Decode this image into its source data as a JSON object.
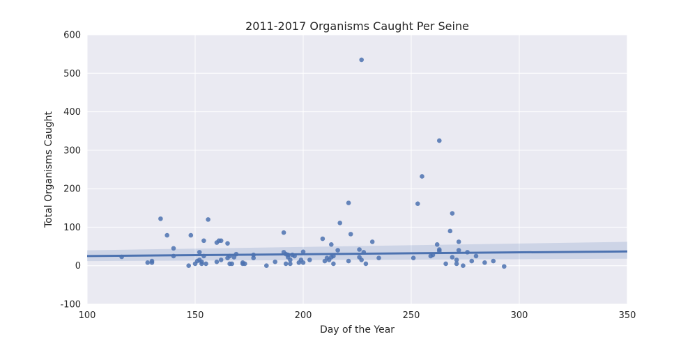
{
  "chart_data": {
    "type": "scatter",
    "title": "2011-2017 Organisms Caught Per Seine",
    "xlabel": "Day of the Year",
    "ylabel": "Total Organisms Caught",
    "xlim": [
      100,
      350
    ],
    "ylim": [
      -100,
      600
    ],
    "xticks": [
      100,
      150,
      200,
      250,
      300,
      350
    ],
    "yticks": [
      -100,
      0,
      100,
      200,
      300,
      400,
      500,
      600
    ],
    "grid": true,
    "colors": {
      "background": "#eaeaf2",
      "grid": "#ffffff",
      "points": "#4c72b0",
      "regression": "#4c72b0",
      "confidence_band": "#4c72b0"
    },
    "points": [
      {
        "x": 116,
        "y": 23
      },
      {
        "x": 128,
        "y": 8
      },
      {
        "x": 130,
        "y": 12
      },
      {
        "x": 130,
        "y": 8
      },
      {
        "x": 134,
        "y": 122
      },
      {
        "x": 137,
        "y": 79
      },
      {
        "x": 140,
        "y": 45
      },
      {
        "x": 140,
        "y": 25
      },
      {
        "x": 147,
        "y": 0
      },
      {
        "x": 148,
        "y": 79
      },
      {
        "x": 150,
        "y": 5
      },
      {
        "x": 151,
        "y": 12
      },
      {
        "x": 152,
        "y": 15
      },
      {
        "x": 152,
        "y": 35
      },
      {
        "x": 153,
        "y": 10
      },
      {
        "x": 153,
        "y": 5
      },
      {
        "x": 154,
        "y": 25
      },
      {
        "x": 154,
        "y": 65
      },
      {
        "x": 155,
        "y": 5
      },
      {
        "x": 156,
        "y": 120
      },
      {
        "x": 160,
        "y": 60
      },
      {
        "x": 160,
        "y": 10
      },
      {
        "x": 161,
        "y": 65
      },
      {
        "x": 162,
        "y": 65
      },
      {
        "x": 162,
        "y": 15
      },
      {
        "x": 165,
        "y": 58
      },
      {
        "x": 165,
        "y": 20
      },
      {
        "x": 166,
        "y": 25
      },
      {
        "x": 166,
        "y": 5
      },
      {
        "x": 167,
        "y": 5
      },
      {
        "x": 168,
        "y": 22
      },
      {
        "x": 169,
        "y": 30
      },
      {
        "x": 172,
        "y": 5
      },
      {
        "x": 172,
        "y": 8
      },
      {
        "x": 173,
        "y": 5
      },
      {
        "x": 177,
        "y": 20
      },
      {
        "x": 177,
        "y": 28
      },
      {
        "x": 183,
        "y": 0
      },
      {
        "x": 187,
        "y": 10
      },
      {
        "x": 191,
        "y": 86
      },
      {
        "x": 191,
        "y": 35
      },
      {
        "x": 192,
        "y": 5
      },
      {
        "x": 192,
        "y": 30
      },
      {
        "x": 193,
        "y": 28
      },
      {
        "x": 193,
        "y": 22
      },
      {
        "x": 194,
        "y": 15
      },
      {
        "x": 194,
        "y": 5
      },
      {
        "x": 195,
        "y": 28
      },
      {
        "x": 196,
        "y": 25
      },
      {
        "x": 198,
        "y": 8
      },
      {
        "x": 199,
        "y": 15
      },
      {
        "x": 200,
        "y": 8
      },
      {
        "x": 200,
        "y": 36
      },
      {
        "x": 203,
        "y": 15
      },
      {
        "x": 209,
        "y": 70
      },
      {
        "x": 210,
        "y": 12
      },
      {
        "x": 211,
        "y": 20
      },
      {
        "x": 212,
        "y": 15
      },
      {
        "x": 213,
        "y": 55
      },
      {
        "x": 213,
        "y": 22
      },
      {
        "x": 214,
        "y": 25
      },
      {
        "x": 214,
        "y": 5
      },
      {
        "x": 216,
        "y": 40
      },
      {
        "x": 217,
        "y": 111
      },
      {
        "x": 221,
        "y": 163
      },
      {
        "x": 221,
        "y": 12
      },
      {
        "x": 222,
        "y": 82
      },
      {
        "x": 226,
        "y": 22
      },
      {
        "x": 226,
        "y": 42
      },
      {
        "x": 227,
        "y": 535
      },
      {
        "x": 227,
        "y": 15
      },
      {
        "x": 228,
        "y": 35
      },
      {
        "x": 229,
        "y": 5
      },
      {
        "x": 232,
        "y": 62
      },
      {
        "x": 235,
        "y": 20
      },
      {
        "x": 251,
        "y": 20
      },
      {
        "x": 253,
        "y": 161
      },
      {
        "x": 255,
        "y": 232
      },
      {
        "x": 259,
        "y": 25
      },
      {
        "x": 260,
        "y": 28
      },
      {
        "x": 262,
        "y": 55
      },
      {
        "x": 263,
        "y": 42
      },
      {
        "x": 263,
        "y": 38
      },
      {
        "x": 263,
        "y": 325
      },
      {
        "x": 266,
        "y": 5
      },
      {
        "x": 268,
        "y": 90
      },
      {
        "x": 269,
        "y": 136
      },
      {
        "x": 269,
        "y": 22
      },
      {
        "x": 271,
        "y": 15
      },
      {
        "x": 271,
        "y": 5
      },
      {
        "x": 272,
        "y": 62
      },
      {
        "x": 272,
        "y": 40
      },
      {
        "x": 274,
        "y": 0
      },
      {
        "x": 276,
        "y": 35
      },
      {
        "x": 278,
        "y": 12
      },
      {
        "x": 280,
        "y": 25
      },
      {
        "x": 284,
        "y": 8
      },
      {
        "x": 288,
        "y": 12
      },
      {
        "x": 293,
        "y": -2
      }
    ],
    "regression": {
      "x": [
        100,
        350
      ],
      "y": [
        25,
        37
      ],
      "ci_lower": [
        12,
        18
      ],
      "ci_upper": [
        40,
        62
      ]
    }
  }
}
